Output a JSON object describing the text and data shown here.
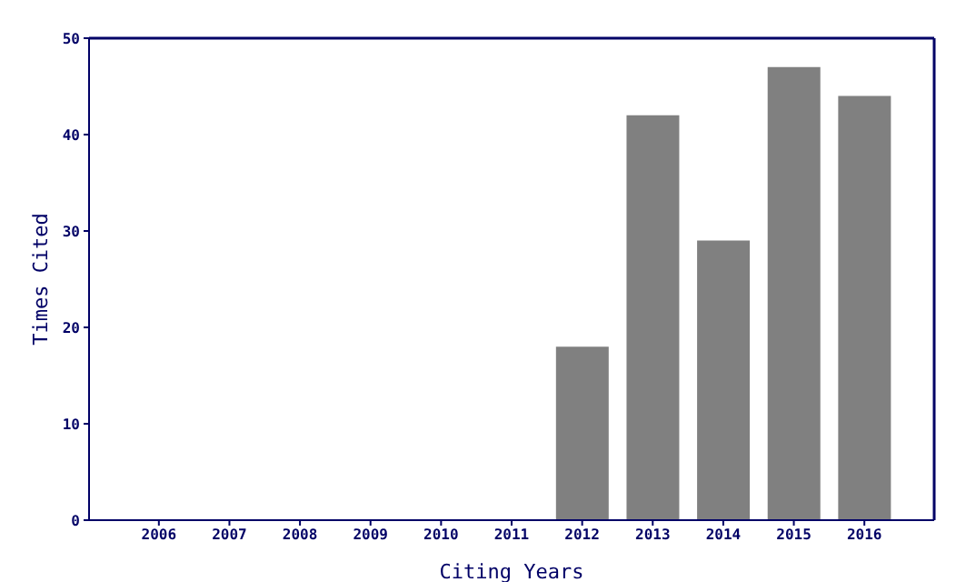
{
  "chart_data": {
    "type": "bar",
    "xlabel": "Citing Years",
    "ylabel": "Times Cited",
    "categories": [
      "2006",
      "2007",
      "2008",
      "2009",
      "2010",
      "2011",
      "2012",
      "2013",
      "2014",
      "2015",
      "2016"
    ],
    "values": [
      0,
      0,
      0,
      0,
      0,
      0,
      18,
      42,
      29,
      47,
      44
    ],
    "color": "#808080",
    "ylim": [
      0,
      50
    ],
    "yticks": [
      0,
      10,
      20,
      30,
      40,
      50
    ],
    "grid": false
  }
}
